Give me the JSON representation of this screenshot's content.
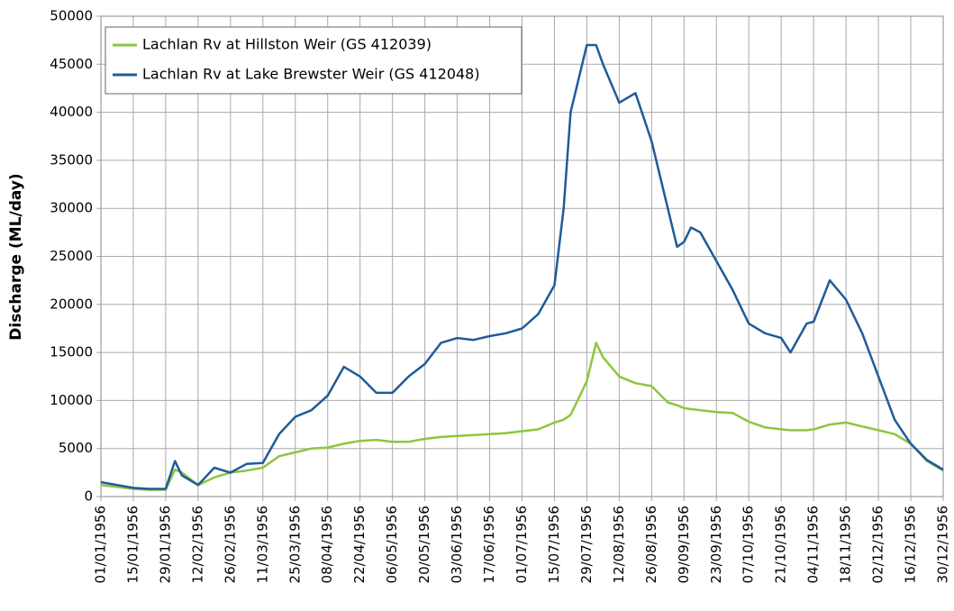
{
  "chart_data": {
    "type": "line",
    "y_label": "Discharge (ML/day)",
    "x": [
      "01/01/1956",
      "08/01/1956",
      "15/01/1956",
      "22/01/1956",
      "29/01/1956",
      "02/02/1956",
      "05/02/1956",
      "12/02/1956",
      "19/02/1956",
      "26/02/1956",
      "04/03/1956",
      "11/03/1956",
      "18/03/1956",
      "25/03/1956",
      "01/04/1956",
      "08/04/1956",
      "15/04/1956",
      "22/04/1956",
      "29/04/1956",
      "06/05/1956",
      "13/05/1956",
      "20/05/1956",
      "27/05/1956",
      "03/06/1956",
      "10/06/1956",
      "17/06/1956",
      "24/06/1956",
      "01/07/1956",
      "08/07/1956",
      "15/07/1956",
      "19/07/1956",
      "22/07/1956",
      "29/07/1956",
      "02/08/1956",
      "05/08/1956",
      "12/08/1956",
      "19/08/1956",
      "26/08/1956",
      "02/09/1956",
      "06/09/1956",
      "09/09/1956",
      "12/09/1956",
      "16/09/1956",
      "23/09/1956",
      "30/09/1956",
      "07/10/1956",
      "14/10/1956",
      "21/10/1956",
      "25/10/1956",
      "01/11/1956",
      "04/11/1956",
      "11/11/1956",
      "18/11/1956",
      "25/11/1956",
      "02/12/1956",
      "09/12/1956",
      "16/12/1956",
      "23/12/1956",
      "30/12/1956"
    ],
    "series": [
      {
        "name": "Lachlan Rv at Hillston Weir (GS 412039)",
        "color": "#8dc63f",
        "values": [
          1200,
          1000,
          800,
          700,
          700,
          2800,
          2500,
          1200,
          2000,
          2500,
          2700,
          3000,
          4200,
          4600,
          5000,
          5100,
          5500,
          5800,
          5900,
          5700,
          5700,
          6000,
          6200,
          6300,
          6400,
          6500,
          6600,
          6800,
          7000,
          7700,
          8000,
          8500,
          12000,
          16000,
          14500,
          12500,
          11800,
          11500,
          9800,
          9500,
          9200,
          9100,
          9000,
          8800,
          8700,
          7800,
          7200,
          7000,
          6900,
          6900,
          7000,
          7500,
          7700,
          7300,
          6900,
          6500,
          5500,
          3700,
          2700
        ]
      },
      {
        "name": "Lachlan Rv at Lake Brewster Weir (GS 412048)",
        "color": "#1f5b99",
        "values": [
          1500,
          1200,
          900,
          800,
          800,
          3700,
          2200,
          1200,
          3000,
          2500,
          3400,
          3500,
          6500,
          8300,
          9000,
          10500,
          13500,
          12500,
          10800,
          10800,
          12500,
          13800,
          16000,
          16500,
          16300,
          16700,
          17000,
          17500,
          19000,
          22000,
          30000,
          40000,
          47000,
          47000,
          45000,
          41000,
          42000,
          37000,
          30000,
          26000,
          26500,
          28000,
          27500,
          24500,
          21500,
          18000,
          17000,
          16500,
          15000,
          18000,
          18200,
          22500,
          20500,
          17000,
          12500,
          8000,
          5500,
          3800,
          2800
        ]
      }
    ],
    "xlim": [
      "01/01/1956",
      "30/12/1956"
    ],
    "xticks": [
      "01/01/1956",
      "15/01/1956",
      "29/01/1956",
      "12/02/1956",
      "26/02/1956",
      "11/03/1956",
      "25/03/1956",
      "08/04/1956",
      "22/04/1956",
      "06/05/1956",
      "20/05/1956",
      "03/06/1956",
      "17/06/1956",
      "01/07/1956",
      "15/07/1956",
      "29/07/1956",
      "12/08/1956",
      "26/08/1956",
      "09/09/1956",
      "23/09/1956",
      "07/10/1956",
      "21/10/1956",
      "04/11/1956",
      "18/11/1956",
      "02/12/1956",
      "16/12/1956",
      "30/12/1956"
    ],
    "ylim": [
      0,
      50000
    ],
    "yticks": [
      0,
      5000,
      10000,
      15000,
      20000,
      25000,
      30000,
      35000,
      40000,
      45000,
      50000
    ],
    "grid": true,
    "legend": "upper left"
  }
}
